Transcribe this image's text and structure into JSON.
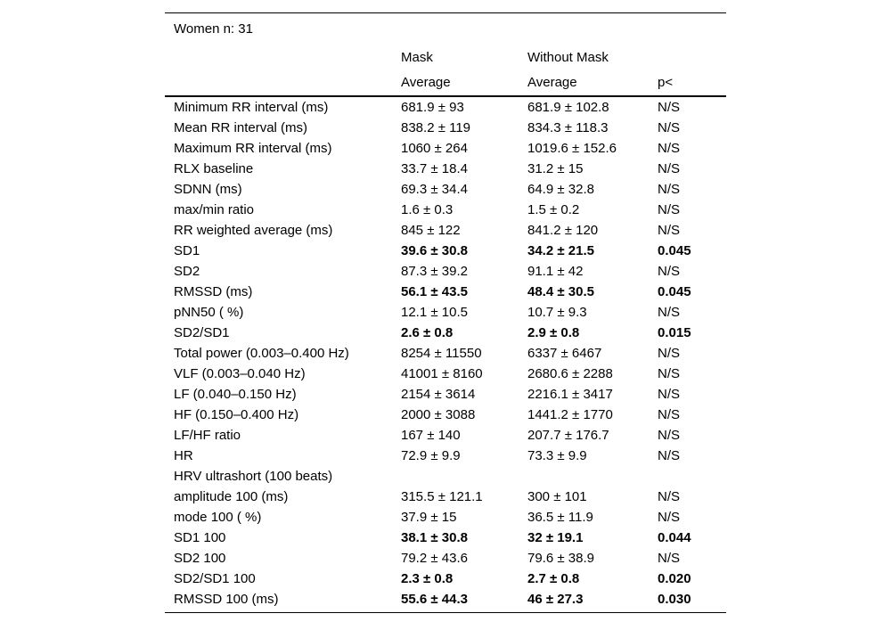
{
  "page": {
    "background_color": "#ffffff",
    "text_color": "#000000"
  },
  "table": {
    "title": "Women n: 31",
    "column_groups": {
      "mask": "Mask",
      "without_mask": "Without Mask"
    },
    "sub_headers": {
      "mask_average": "Average",
      "without_mask_average": "Average",
      "p": "p<"
    },
    "rows": [
      {
        "label": "Minimum RR interval (ms)",
        "mask": "681.9 ± 93",
        "without_mask": "681.9 ± 102.8",
        "p": "N/S",
        "significant": false
      },
      {
        "label": "Mean RR interval (ms)",
        "mask": "838.2 ± 119",
        "without_mask": "834.3 ± 118.3",
        "p": "N/S",
        "significant": false
      },
      {
        "label": "Maximum RR interval (ms)",
        "mask": "1060 ± 264",
        "without_mask": "1019.6 ± 152.6",
        "p": "N/S",
        "significant": false
      },
      {
        "label": "RLX baseline",
        "mask": "33.7 ± 18.4",
        "without_mask": "31.2 ± 15",
        "p": "N/S",
        "significant": false
      },
      {
        "label": "SDNN (ms)",
        "mask": "69.3 ± 34.4",
        "without_mask": "64.9 ± 32.8",
        "p": "N/S",
        "significant": false
      },
      {
        "label": "max/min ratio",
        "mask": "1.6 ± 0.3",
        "without_mask": "1.5 ± 0.2",
        "p": "N/S",
        "significant": false
      },
      {
        "label": "RR weighted average (ms)",
        "mask": "845 ± 122",
        "without_mask": "841.2 ± 120",
        "p": "N/S",
        "significant": false
      },
      {
        "label": "SD1",
        "mask": "39.6 ± 30.8",
        "without_mask": "34.2 ± 21.5",
        "p": "0.045",
        "significant": true
      },
      {
        "label": "SD2",
        "mask": "87.3 ± 39.2",
        "without_mask": "91.1 ± 42",
        "p": "N/S",
        "significant": false
      },
      {
        "label": "RMSSD (ms)",
        "mask": "56.1 ± 43.5",
        "without_mask": "48.4 ± 30.5",
        "p": "0.045",
        "significant": true
      },
      {
        "label": "pNN50 ( %)",
        "mask": "12.1 ± 10.5",
        "without_mask": "10.7 ± 9.3",
        "p": "N/S",
        "significant": false
      },
      {
        "label": "SD2/SD1",
        "mask": "2.6 ± 0.8",
        "without_mask": "2.9 ± 0.8",
        "p": "0.015",
        "significant": true
      },
      {
        "label": "Total power (0.003–0.400 Hz)",
        "mask": "8254 ± 11550",
        "without_mask": "6337 ± 6467",
        "p": "N/S",
        "significant": false
      },
      {
        "label": "VLF (0.003–0.040 Hz)",
        "mask": "41001 ± 8160",
        "without_mask": "2680.6 ± 2288",
        "p": "N/S",
        "significant": false
      },
      {
        "label": "LF (0.040–0.150 Hz)",
        "mask": "2154 ± 3614",
        "without_mask": "2216.1 ± 3417",
        "p": "N/S",
        "significant": false
      },
      {
        "label": "HF (0.150–0.400 Hz)",
        "mask": "2000 ± 3088",
        "without_mask": "1441.2 ± 1770",
        "p": "N/S",
        "significant": false
      },
      {
        "label": "LF/HF ratio",
        "mask": "167 ± 140",
        "without_mask": "207.7 ± 176.7",
        "p": "N/S",
        "significant": false
      },
      {
        "label": "HR",
        "mask": "72.9 ± 9.9",
        "without_mask": "73.3 ± 9.9",
        "p": "N/S",
        "significant": false
      },
      {
        "label": "HRV ultrashort (100 beats)",
        "mask": "",
        "without_mask": "",
        "p": "",
        "significant": false
      },
      {
        "label": "amplitude 100 (ms)",
        "mask": "315.5 ± 121.1",
        "without_mask": "300 ± 101",
        "p": "N/S",
        "significant": false
      },
      {
        "label": "mode 100 ( %)",
        "mask": "37.9 ± 15",
        "without_mask": "36.5 ± 11.9",
        "p": "N/S",
        "significant": false
      },
      {
        "label": "SD1 100",
        "mask": "38.1 ± 30.8",
        "without_mask": "32 ± 19.1",
        "p": "0.044",
        "significant": true
      },
      {
        "label": "SD2 100",
        "mask": "79.2 ± 43.6",
        "without_mask": "79.6 ± 38.9",
        "p": "N/S",
        "significant": false
      },
      {
        "label": "SD2/SD1 100",
        "mask": "2.3 ± 0.8",
        "without_mask": "2.7 ± 0.8",
        "p": "0.020",
        "significant": true
      },
      {
        "label": "RMSSD 100 (ms)",
        "mask": "55.6 ± 44.3",
        "without_mask": "46 ± 27.3",
        "p": "0.030",
        "significant": true
      }
    ]
  }
}
